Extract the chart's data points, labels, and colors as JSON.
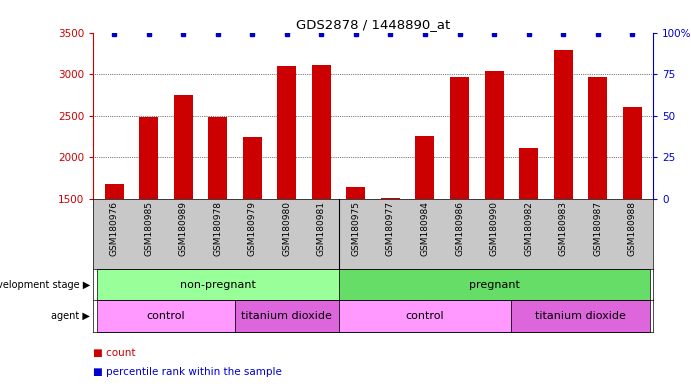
{
  "title": "GDS2878 / 1448890_at",
  "samples": [
    "GSM180976",
    "GSM180985",
    "GSM180989",
    "GSM180978",
    "GSM180979",
    "GSM180980",
    "GSM180981",
    "GSM180975",
    "GSM180977",
    "GSM180984",
    "GSM180986",
    "GSM180990",
    "GSM180982",
    "GSM180983",
    "GSM180987",
    "GSM180988"
  ],
  "counts": [
    1680,
    2490,
    2750,
    2490,
    2250,
    3100,
    3110,
    1650,
    1510,
    2260,
    2970,
    3040,
    2110,
    3290,
    2970,
    2610
  ],
  "percentile_ranks": [
    99,
    99,
    99,
    99,
    99,
    99,
    99,
    99,
    99,
    99,
    99,
    99,
    99,
    99,
    99,
    99
  ],
  "ylim_left": [
    1500,
    3500
  ],
  "ylim_right": [
    0,
    100
  ],
  "yticks_left": [
    1500,
    2000,
    2500,
    3000,
    3500
  ],
  "yticks_right": [
    0,
    25,
    50,
    75,
    100
  ],
  "bar_color": "#cc0000",
  "dot_color": "#0000cc",
  "development_stage_groups": [
    {
      "label": "non-pregnant",
      "start": 0,
      "end": 7,
      "color": "#99ff99"
    },
    {
      "label": "pregnant",
      "start": 7,
      "end": 16,
      "color": "#66dd66"
    }
  ],
  "agent_groups": [
    {
      "label": "control",
      "start": 0,
      "end": 4,
      "color": "#ff99ff"
    },
    {
      "label": "titanium dioxide",
      "start": 4,
      "end": 7,
      "color": "#dd66dd"
    },
    {
      "label": "control",
      "start": 7,
      "end": 12,
      "color": "#ff99ff"
    },
    {
      "label": "titanium dioxide",
      "start": 12,
      "end": 16,
      "color": "#dd66dd"
    }
  ],
  "background_color": "#ffffff",
  "tick_label_color_left": "#cc0000",
  "tick_label_color_right": "#0000cc",
  "xlabels_bg": "#c8c8c8",
  "legend_count_color": "#cc0000",
  "legend_pct_color": "#0000cc"
}
